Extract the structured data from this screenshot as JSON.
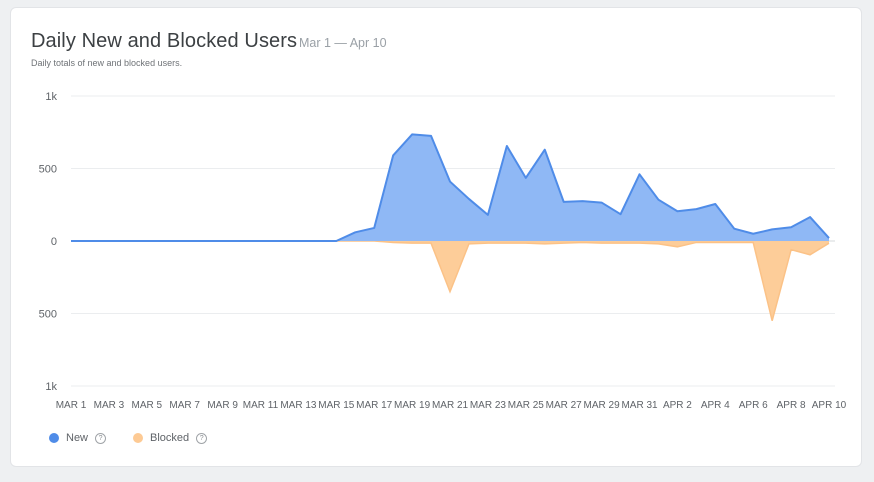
{
  "header": {
    "title": "Daily New and Blocked Users",
    "range": "Mar 1 — Apr 10",
    "subtitle": "Daily totals of new and blocked users."
  },
  "legend": {
    "new_label": "New",
    "blocked_label": "Blocked",
    "help_icon": "question-circle-icon"
  },
  "colors": {
    "new_line": "#4f8ce8",
    "new_fill": "#8fb8f5",
    "blocked_fill": "#fdca94",
    "blocked_line": "#fbc287",
    "grid": "#ebedef",
    "baseline": "#d6d8db"
  },
  "chart_data": {
    "type": "area",
    "title": "Daily New and Blocked Users",
    "subtitle": "Daily totals of new and blocked users.",
    "categories": [
      "MAR 1",
      "MAR 2",
      "MAR 3",
      "MAR 4",
      "MAR 5",
      "MAR 6",
      "MAR 7",
      "MAR 8",
      "MAR 9",
      "MAR 10",
      "MAR 11",
      "MAR 12",
      "MAR 13",
      "MAR 14",
      "MAR 15",
      "MAR 16",
      "MAR 17",
      "MAR 18",
      "MAR 19",
      "MAR 20",
      "MAR 21",
      "MAR 22",
      "MAR 23",
      "MAR 24",
      "MAR 25",
      "MAR 26",
      "MAR 27",
      "MAR 28",
      "MAR 29",
      "MAR 30",
      "MAR 31",
      "APR 1",
      "APR 2",
      "APR 3",
      "APR 4",
      "APR 5",
      "APR 6",
      "APR 7",
      "APR 8",
      "APR 9",
      "APR 10"
    ],
    "tick_labels": [
      "MAR 1",
      "MAR 3",
      "MAR 5",
      "MAR 7",
      "MAR 9",
      "MAR 11",
      "MAR 13",
      "MAR 15",
      "MAR 17",
      "MAR 19",
      "MAR 21",
      "MAR 23",
      "MAR 25",
      "MAR 27",
      "MAR 29",
      "MAR 31",
      "APR 2",
      "APR 4",
      "APR 6",
      "APR 8",
      "APR 10"
    ],
    "y_tick_labels": [
      "1k",
      "500",
      "0",
      "500",
      "1k"
    ],
    "ylim": [
      -1000,
      1000
    ],
    "grid": true,
    "legend_position": "bottom-left",
    "series": [
      {
        "name": "New",
        "values": [
          0,
          0,
          0,
          0,
          0,
          0,
          0,
          0,
          0,
          0,
          0,
          0,
          0,
          0,
          0,
          60,
          90,
          590,
          735,
          725,
          410,
          290,
          180,
          655,
          435,
          630,
          270,
          275,
          265,
          185,
          460,
          285,
          205,
          220,
          255,
          85,
          50,
          80,
          95,
          165,
          20
        ]
      },
      {
        "name": "Blocked",
        "values": [
          0,
          0,
          0,
          0,
          0,
          0,
          0,
          0,
          0,
          0,
          0,
          0,
          0,
          0,
          0,
          0,
          0,
          -10,
          -15,
          -15,
          -350,
          -20,
          -15,
          -15,
          -15,
          -20,
          -15,
          -10,
          -15,
          -15,
          -15,
          -20,
          -40,
          -10,
          -10,
          -10,
          -10,
          -550,
          -60,
          -95,
          -15
        ]
      }
    ]
  }
}
